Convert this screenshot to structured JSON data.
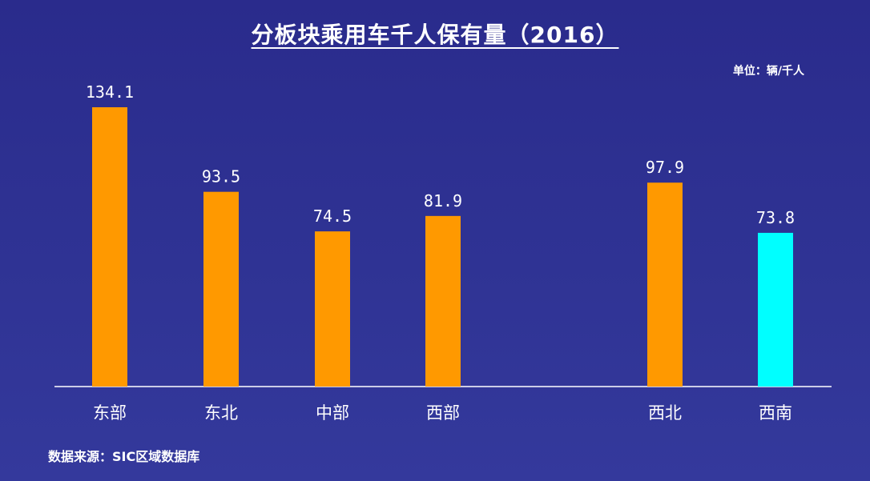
{
  "chart_data": {
    "type": "bar",
    "title": "分板块乘用车千人保有量（2016）",
    "unit_label": "单位：辆/千人",
    "source": "数据来源：SIC区域数据库",
    "categories": [
      "东部",
      "东北",
      "中部",
      "西部",
      "西北",
      "西南"
    ],
    "values": [
      134.1,
      93.5,
      74.5,
      81.9,
      97.9,
      73.8
    ],
    "value_labels": [
      "134.1",
      "93.5",
      "74.5",
      "81.9",
      "97.9",
      "73.8"
    ],
    "bar_colors": [
      "#ff9900",
      "#ff9900",
      "#ff9900",
      "#ff9900",
      "#ff9900",
      "#00ffff"
    ],
    "ylim": [
      0,
      134.1
    ],
    "grid": false,
    "xlabel": "",
    "ylabel": ""
  }
}
